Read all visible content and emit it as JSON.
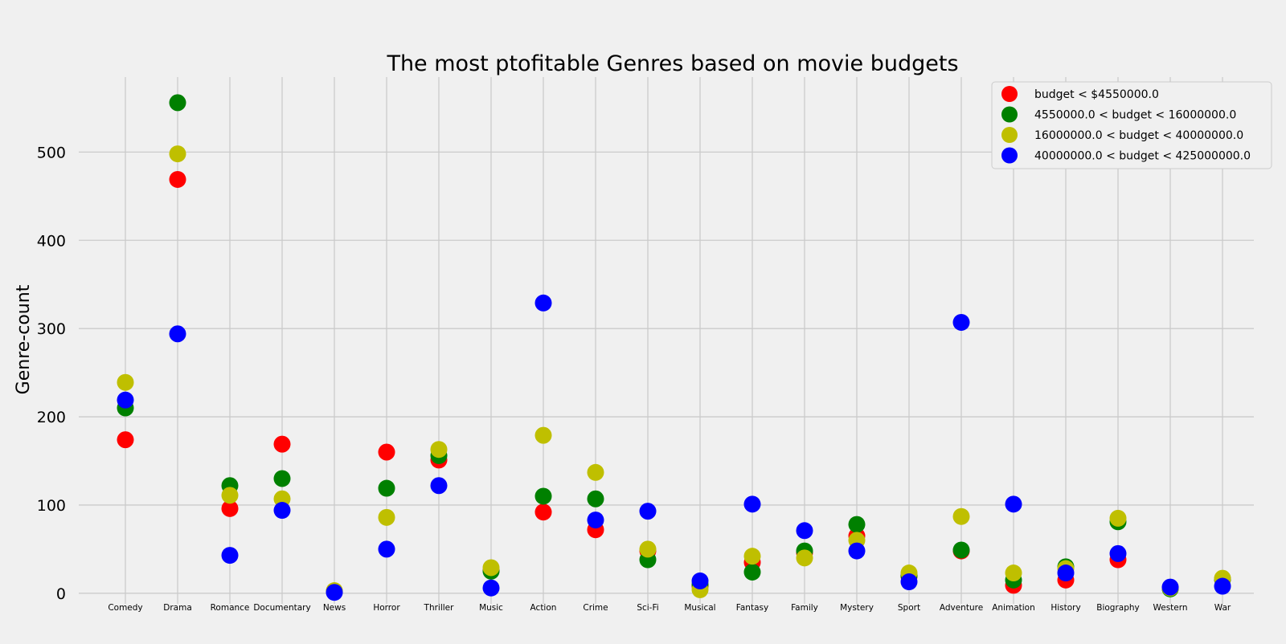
{
  "chart_data": {
    "type": "scatter",
    "title": "The most ptofitable Genres based on movie budgets",
    "xlabel": "",
    "ylabel": "Genre-count",
    "ylim": [
      -12,
      585
    ],
    "yticks": [
      0,
      100,
      200,
      300,
      400,
      500
    ],
    "grid": true,
    "legend_position": "top-right",
    "categories": [
      "Comedy",
      "Drama",
      "Romance",
      "Documentary",
      "News",
      "Horror",
      "Thriller",
      "Music",
      "Action",
      "Crime",
      "Sci-Fi",
      "Musical",
      "Fantasy",
      "Family",
      "Mystery",
      "Sport",
      "Adventure",
      "Animation",
      "History",
      "Biography",
      "Western",
      "War"
    ],
    "series": [
      {
        "name": "budget < $4550000.0",
        "color": "#ff0000",
        "values": [
          174,
          469,
          96,
          169,
          2,
          160,
          151,
          26,
          92,
          72,
          48,
          8,
          35,
          46,
          65,
          19,
          48,
          9,
          15,
          38,
          6,
          16
        ]
      },
      {
        "name": "4550000.0 < budget < 16000000.0",
        "color": "#008000",
        "values": [
          210,
          556,
          122,
          130,
          2,
          119,
          156,
          25,
          110,
          107,
          38,
          10,
          24,
          48,
          78,
          20,
          49,
          15,
          30,
          81,
          5,
          16
        ]
      },
      {
        "name": "16000000.0 < budget < 40000000.0",
        "color": "#bfbf00",
        "values": [
          239,
          498,
          111,
          107,
          3,
          86,
          163,
          29,
          179,
          137,
          50,
          4,
          42,
          40,
          60,
          23,
          87,
          23,
          28,
          85,
          6,
          17
        ]
      },
      {
        "name": "40000000.0 < budget < 425000000.0",
        "color": "#0000ff",
        "values": [
          219,
          294,
          43,
          94,
          1,
          50,
          122,
          6,
          329,
          83,
          93,
          14,
          101,
          71,
          48,
          13,
          307,
          101,
          23,
          45,
          7,
          8
        ]
      }
    ]
  }
}
